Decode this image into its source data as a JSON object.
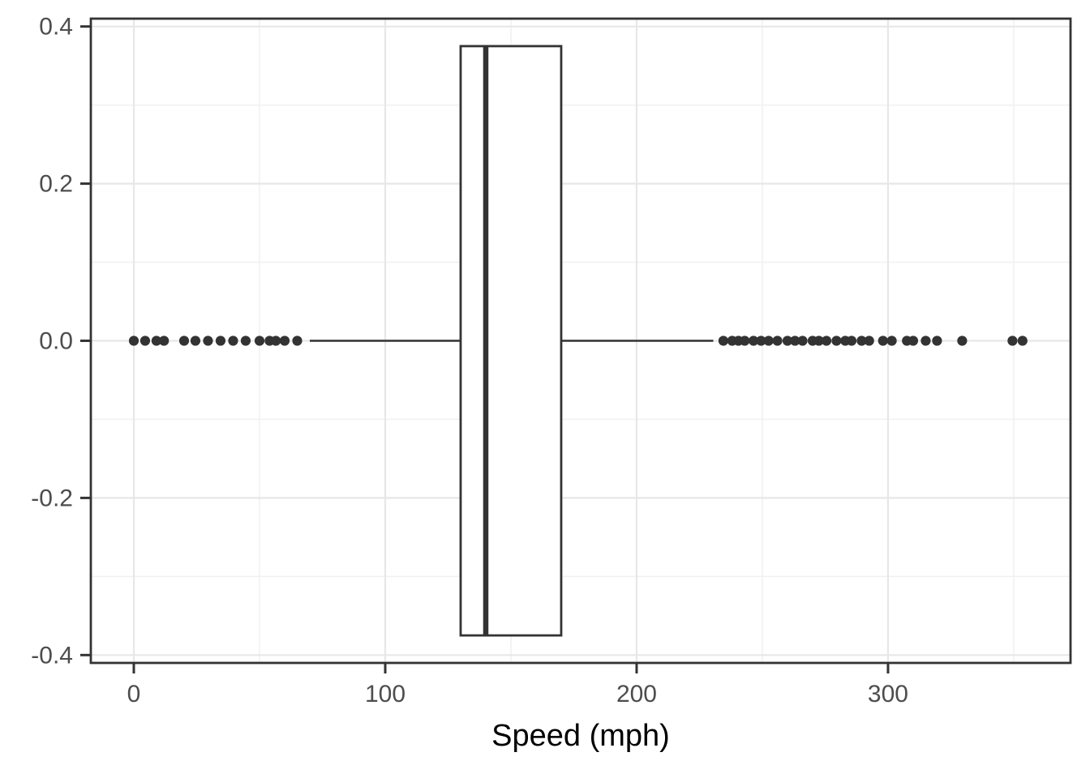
{
  "chart_data": {
    "type": "boxplot",
    "orientation": "horizontal",
    "title": "",
    "xlabel": "Speed (mph)",
    "ylabel": "",
    "x_ticks": {
      "values": [
        0,
        100,
        200,
        300
      ],
      "labels": [
        "0",
        "100",
        "200",
        "300"
      ]
    },
    "y_ticks": {
      "values": [
        0.4,
        0.2,
        0.0,
        -0.2,
        -0.4
      ],
      "labels": [
        "0.4",
        "0.2",
        "0.0",
        "-0.2",
        "-0.4"
      ]
    },
    "x_minor_gridlines": [
      50,
      150,
      250,
      350
    ],
    "y_minor_gridlines": [
      0.3,
      0.1,
      -0.1,
      -0.3
    ],
    "xlim": [
      -17.1,
      372.6
    ],
    "ylim": [
      -0.41,
      0.41
    ],
    "grid": true,
    "legend": "none",
    "box": {
      "q1": 130,
      "median": 140,
      "q3": 170,
      "whisker_low": 70,
      "whisker_high": 230.5,
      "center_y": 0,
      "half_width": 0.375
    },
    "outliers": {
      "y": 0,
      "low": [
        0,
        4.5,
        9,
        12,
        20,
        24.5,
        29.5,
        34.5,
        39.5,
        44.5,
        50,
        54,
        56.5,
        60,
        65
      ],
      "high": [
        234.5,
        238,
        240.5,
        243,
        246.5,
        249.5,
        252.5,
        256,
        260,
        263,
        266,
        270,
        272.5,
        275.5,
        279.5,
        283,
        285.5,
        289.5,
        292.5,
        298,
        301.5,
        307.5,
        310,
        315,
        319.5,
        329.5,
        349.5,
        353.5
      ]
    },
    "style": {
      "stroke_color": "#333333",
      "point_color": "#333333",
      "panel_border_color": "#333333",
      "panel_background": "#FFFFFF",
      "grid_major_color": "#E7E7E7",
      "grid_minor_color": "#F1F1F1",
      "tick_color": "#333333",
      "tick_label_color": "#4D4D4D",
      "axis_title_color": "#000000"
    }
  }
}
